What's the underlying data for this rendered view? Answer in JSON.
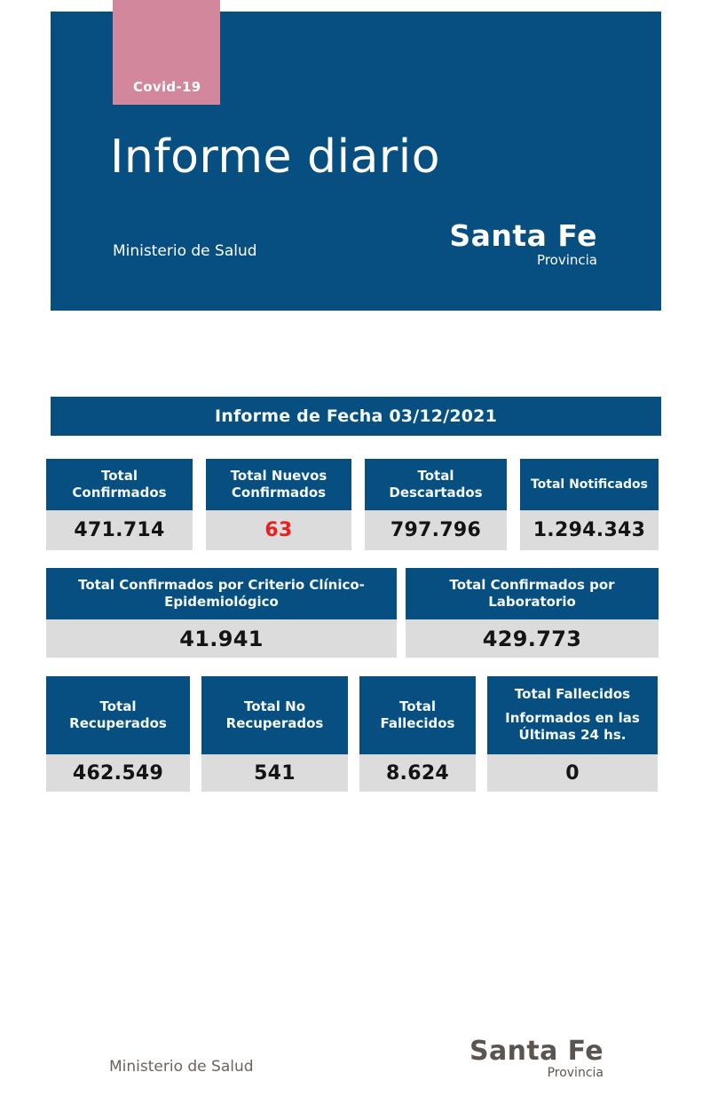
{
  "colors": {
    "primary_blue": "#084f81",
    "badge_pink": "#d3879c",
    "value_bg": "#dcdcdc",
    "alert_red": "#e8201f",
    "footer_gray": "#6b635d"
  },
  "header": {
    "badge_label": "Covid-19",
    "title": "Informe diario",
    "subtitle": "Ministerio de Salud",
    "brand": {
      "name": "Santa Fe",
      "sub": "Provincia"
    }
  },
  "banner": {
    "title": "Informe de Fecha 03/12/2021"
  },
  "stats": {
    "row1": [
      {
        "label": "Total Confirmados",
        "value": "471.714"
      },
      {
        "label": "Total Nuevos Confirmados",
        "value": "63"
      },
      {
        "label": "Total Descartados",
        "value": "797.796"
      },
      {
        "label": "Total Notificados",
        "value": "1.294.343"
      }
    ],
    "row2": [
      {
        "label": "Total Confirmados por Criterio Clínico-Epidemiológico",
        "value": "41.941"
      },
      {
        "label": "Total Confirmados por Laboratorio",
        "value": "429.773"
      }
    ],
    "row3": [
      {
        "label": "Total Recuperados",
        "value": "462.549"
      },
      {
        "label": "Total No Recuperados",
        "value": "541"
      },
      {
        "label": "Total Fallecidos",
        "value": "8.624"
      },
      {
        "label": "Total Fallecidos",
        "label2": "Informados en las Últimas 24 hs.",
        "value": "0"
      }
    ]
  },
  "footer": {
    "left": "Ministerio de Salud",
    "brand": {
      "name": "Santa Fe",
      "sub": "Provincia"
    }
  }
}
